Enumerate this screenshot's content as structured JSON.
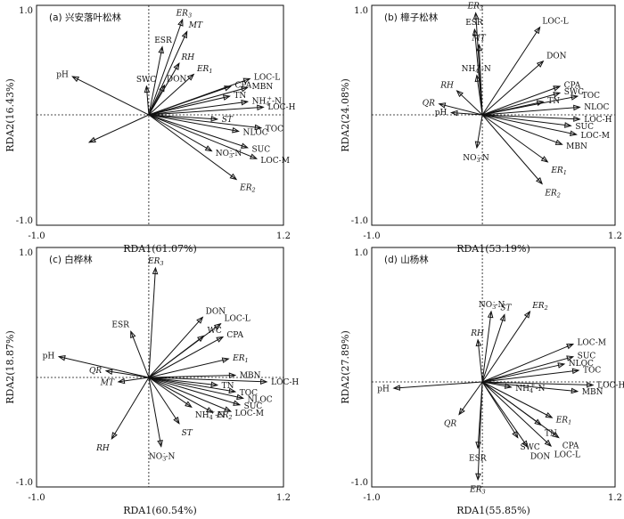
{
  "colors": {
    "ink": "#111111",
    "background": "#ffffff"
  },
  "chart_data": [
    {
      "type": "biplot",
      "title": "(a) 兴安落叶松林",
      "xlabel": "RDA1(61.07%)",
      "ylabel": "RDA2(16.43%)",
      "xlim": [
        -1.0,
        1.2
      ],
      "ylim": [
        -1.0,
        1.0
      ],
      "x_tick_labels": [
        "-1.0",
        "1.2"
      ],
      "y_tick_labels": [
        "1.0",
        "-1.0"
      ],
      "vectors": [
        {
          "label": "pH",
          "x": -0.68,
          "y": 0.35
        },
        {
          "label": "",
          "x": -0.53,
          "y": -0.25
        },
        {
          "label": "SWC",
          "x": -0.02,
          "y": 0.26
        },
        {
          "label": "ESR",
          "x": 0.12,
          "y": 0.62
        },
        {
          "label": "ER3",
          "x": 0.3,
          "y": 0.87
        },
        {
          "label": "MT",
          "x": 0.34,
          "y": 0.76
        },
        {
          "label": "RH",
          "x": 0.27,
          "y": 0.47
        },
        {
          "label": "DON",
          "x": 0.14,
          "y": 0.27
        },
        {
          "label": "ER1",
          "x": 0.4,
          "y": 0.37
        },
        {
          "label": "LOC-L",
          "x": 0.9,
          "y": 0.33
        },
        {
          "label": "MBN",
          "x": 0.88,
          "y": 0.25
        },
        {
          "label": "CPA",
          "x": 0.73,
          "y": 0.26
        },
        {
          "label": "TN",
          "x": 0.72,
          "y": 0.17
        },
        {
          "label": "NH4+-N",
          "x": 0.88,
          "y": 0.12
        },
        {
          "label": "LOC-H",
          "x": 1.02,
          "y": 0.07
        },
        {
          "label": "ST",
          "x": 0.61,
          "y": -0.04
        },
        {
          "label": "TOC",
          "x": 1.0,
          "y": -0.12
        },
        {
          "label": "NLOC",
          "x": 0.8,
          "y": -0.15
        },
        {
          "label": "SUC",
          "x": 0.88,
          "y": -0.3
        },
        {
          "label": "NO3--N",
          "x": 0.56,
          "y": -0.33
        },
        {
          "label": "LOC-M",
          "x": 0.96,
          "y": -0.4
        },
        {
          "label": "ER2",
          "x": 0.78,
          "y": -0.59
        }
      ]
    },
    {
      "type": "biplot",
      "title": "(b) 樟子松林",
      "xlabel": "RDA1(53.19%)",
      "ylabel": "RDA2(24.08%)",
      "xlim": [
        -1.0,
        1.2
      ],
      "ylim": [
        -1.0,
        1.0
      ],
      "x_tick_labels": [
        "-1.0",
        "1.2"
      ],
      "y_tick_labels": [
        "1.0",
        "-1.0"
      ],
      "vectors": [
        {
          "label": "ER3",
          "x": -0.06,
          "y": 0.93
        },
        {
          "label": "ESR",
          "x": -0.07,
          "y": 0.78
        },
        {
          "label": "MT",
          "x": -0.03,
          "y": 0.64
        },
        {
          "label": "LOC-L",
          "x": 0.52,
          "y": 0.8
        },
        {
          "label": "DON",
          "x": 0.55,
          "y": 0.49
        },
        {
          "label": "NH4+-N",
          "x": -0.05,
          "y": 0.36
        },
        {
          "label": "RH",
          "x": -0.23,
          "y": 0.22
        },
        {
          "label": "QR",
          "x": -0.39,
          "y": 0.1
        },
        {
          "label": "pH",
          "x": -0.28,
          "y": 0.02
        },
        {
          "label": "CPA",
          "x": 0.7,
          "y": 0.26
        },
        {
          "label": "SWC",
          "x": 0.7,
          "y": 0.2
        },
        {
          "label": "TOC",
          "x": 0.86,
          "y": 0.17
        },
        {
          "label": "TN",
          "x": 0.55,
          "y": 0.12
        },
        {
          "label": "NLOC",
          "x": 0.88,
          "y": 0.07
        },
        {
          "label": "LOC-H",
          "x": 0.88,
          "y": -0.04
        },
        {
          "label": "SUC",
          "x": 0.8,
          "y": -0.1
        },
        {
          "label": "LOC-M",
          "x": 0.85,
          "y": -0.18
        },
        {
          "label": "MBN",
          "x": 0.72,
          "y": -0.27
        },
        {
          "label": "NO3--N",
          "x": -0.05,
          "y": -0.3
        },
        {
          "label": "ER1",
          "x": 0.59,
          "y": -0.43
        },
        {
          "label": "ER2",
          "x": 0.54,
          "y": -0.63
        }
      ]
    },
    {
      "type": "biplot",
      "title": "(c) 白桦林",
      "xlabel": "RDA1(60.54%)",
      "ylabel": "RDA2(18.87%)",
      "xlim": [
        -1.0,
        1.2
      ],
      "ylim": [
        -1.0,
        1.0
      ],
      "x_tick_labels": [
        "-1.0",
        "1.2"
      ],
      "y_tick_labels": [
        "1.0",
        "-1.0"
      ],
      "vectors": [
        {
          "label": "ER3",
          "x": 0.06,
          "y": 1.0
        },
        {
          "label": "ESR",
          "x": -0.16,
          "y": 0.42
        },
        {
          "label": "DON",
          "x": 0.48,
          "y": 0.55
        },
        {
          "label": "LOC-L",
          "x": 0.64,
          "y": 0.49
        },
        {
          "label": "WC",
          "x": 0.49,
          "y": 0.38
        },
        {
          "label": "CPA",
          "x": 0.66,
          "y": 0.37
        },
        {
          "label": "ER1",
          "x": 0.71,
          "y": 0.17
        },
        {
          "label": "pH",
          "x": -0.8,
          "y": 0.19
        },
        {
          "label": "QR",
          "x": -0.38,
          "y": 0.06
        },
        {
          "label": "MT",
          "x": -0.27,
          "y": -0.04
        },
        {
          "label": "MBN",
          "x": 0.77,
          "y": 0.02
        },
        {
          "label": "LOC-H",
          "x": 1.05,
          "y": -0.04
        },
        {
          "label": "TN",
          "x": 0.61,
          "y": -0.07
        },
        {
          "label": "TOC",
          "x": 0.77,
          "y": -0.13
        },
        {
          "label": "NLOC",
          "x": 0.84,
          "y": -0.19
        },
        {
          "label": "SUC",
          "x": 0.81,
          "y": -0.25
        },
        {
          "label": "NH4+-N",
          "x": 0.38,
          "y": -0.27
        },
        {
          "label": "ER2",
          "x": 0.57,
          "y": -0.32
        },
        {
          "label": "LOC-M",
          "x": 0.73,
          "y": -0.31
        },
        {
          "label": "ST",
          "x": 0.27,
          "y": -0.42
        },
        {
          "label": "RH",
          "x": -0.33,
          "y": -0.56
        },
        {
          "label": "NO3--N",
          "x": 0.11,
          "y": -0.63
        }
      ]
    },
    {
      "type": "biplot",
      "title": "(d) 山杨林",
      "xlabel": "RDA1(55.85%)",
      "ylabel": "RDA2(27.89%)",
      "xlim": [
        -1.0,
        1.2
      ],
      "ylim": [
        -1.0,
        1.0
      ],
      "x_tick_labels": [
        "-1.0",
        "1.2"
      ],
      "y_tick_labels": [
        "1.0",
        "-1.0"
      ],
      "vectors": [
        {
          "label": "NO3--N",
          "x": 0.08,
          "y": 0.67
        },
        {
          "label": "ST",
          "x": 0.2,
          "y": 0.64
        },
        {
          "label": "ER2",
          "x": 0.43,
          "y": 0.67
        },
        {
          "label": "RH",
          "x": -0.04,
          "y": 0.4
        },
        {
          "label": "LOC-M",
          "x": 0.82,
          "y": 0.36
        },
        {
          "label": "SUC",
          "x": 0.82,
          "y": 0.24
        },
        {
          "label": "NLOC",
          "x": 0.74,
          "y": 0.17
        },
        {
          "label": "TOC",
          "x": 0.87,
          "y": 0.11
        },
        {
          "label": "pH",
          "x": -0.8,
          "y": -0.06
        },
        {
          "label": "NH4+-N",
          "x": 0.26,
          "y": -0.05
        },
        {
          "label": "LOC-H",
          "x": 1.0,
          "y": -0.03
        },
        {
          "label": "MBN",
          "x": 0.86,
          "y": -0.09
        },
        {
          "label": "QR",
          "x": -0.21,
          "y": -0.31
        },
        {
          "label": "ER1",
          "x": 0.63,
          "y": -0.34
        },
        {
          "label": "TN",
          "x": 0.53,
          "y": -0.41
        },
        {
          "label": "CPA",
          "x": 0.69,
          "y": -0.53
        },
        {
          "label": "SWC",
          "x": 0.32,
          "y": -0.53
        },
        {
          "label": "LOC-L",
          "x": 0.62,
          "y": -0.61
        },
        {
          "label": "DON",
          "x": 0.41,
          "y": -0.62
        },
        {
          "label": "ESR",
          "x": -0.04,
          "y": -0.63
        },
        {
          "label": "ER3",
          "x": -0.04,
          "y": -0.93
        }
      ]
    }
  ]
}
